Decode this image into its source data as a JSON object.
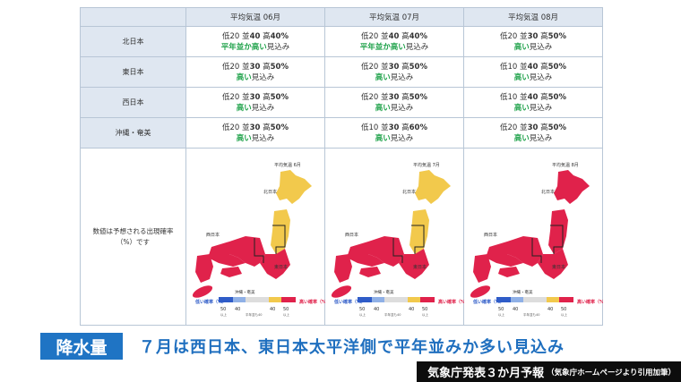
{
  "table": {
    "columns": [
      {
        "prefix": "平均気温",
        "month": "06月"
      },
      {
        "prefix": "平均気温",
        "month": "07月"
      },
      {
        "prefix": "平均気温",
        "month": "08月"
      }
    ],
    "rows": [
      {
        "region": "北日本",
        "cells": [
          {
            "l1": "低20",
            "l2": "並",
            "n": "40",
            "l3": "高",
            "h": "40%",
            "verdict": "平年並か高い",
            "tail": "見込み"
          },
          {
            "l1": "低20",
            "l2": "並",
            "n": "40",
            "l3": "高",
            "h": "40%",
            "verdict": "平年並か高い",
            "tail": "見込み"
          },
          {
            "l1": "低20",
            "l2": "並",
            "n": "30",
            "l3": "高",
            "h": "50%",
            "verdict": "高い",
            "tail": "見込み"
          }
        ]
      },
      {
        "region": "東日本",
        "cells": [
          {
            "l1": "低20",
            "l2": "並",
            "n": "30",
            "l3": "高",
            "h": "50%",
            "verdict": "高い",
            "tail": "見込み"
          },
          {
            "l1": "低20",
            "l2": "並",
            "n": "30",
            "l3": "高",
            "h": "50%",
            "verdict": "高い",
            "tail": "見込み"
          },
          {
            "l1": "低10",
            "l2": "並",
            "n": "40",
            "l3": "高",
            "h": "50%",
            "verdict": "高い",
            "tail": "見込み"
          }
        ]
      },
      {
        "region": "西日本",
        "cells": [
          {
            "l1": "低20",
            "l2": "並",
            "n": "30",
            "l3": "高",
            "h": "50%",
            "verdict": "高い",
            "tail": "見込み"
          },
          {
            "l1": "低20",
            "l2": "並",
            "n": "30",
            "l3": "高",
            "h": "50%",
            "verdict": "高い",
            "tail": "見込み"
          },
          {
            "l1": "低10",
            "l2": "並",
            "n": "40",
            "l3": "高",
            "h": "50%",
            "verdict": "高い",
            "tail": "見込み"
          }
        ]
      },
      {
        "region": "沖縄・奄美",
        "cells": [
          {
            "l1": "低20",
            "l2": "並",
            "n": "30",
            "l3": "高",
            "h": "50%",
            "verdict": "高い",
            "tail": "見込み"
          },
          {
            "l1": "低10",
            "l2": "並",
            "n": "30",
            "l3": "高",
            "h": "60%",
            "verdict": "高い",
            "tail": "見込み"
          },
          {
            "l1": "低20",
            "l2": "並",
            "n": "30",
            "l3": "高",
            "h": "50%",
            "verdict": "高い",
            "tail": "見込み"
          }
        ]
      }
    ],
    "map_caption": "数値は予想される出現確率（%）です",
    "maps": [
      {
        "title": "平均気温 6月",
        "north_color": "#f2c94c"
      },
      {
        "title": "平均気温 7月",
        "north_color": "#f2c94c"
      },
      {
        "title": "平均気温 8月",
        "north_color": "#e0224b"
      }
    ],
    "map_labels": {
      "north": "北日本",
      "west": "西日本",
      "east": "東日本",
      "okinawa": "沖縄・奄美"
    },
    "legend": {
      "low": "低い確率（%）",
      "high": "高い確率（%）",
      "v1": "50",
      "v2": "40",
      "v3": "40",
      "v4": "50",
      "sub1": "以上",
      "sub2": "平年並も40",
      "sub3": "以上"
    },
    "colors": {
      "high": "#e0224b",
      "normal": "#f2c94c",
      "low": "#2f5cc8",
      "header_bg": "#dfe7f1",
      "verdict": "#1fa24a"
    }
  },
  "banner": {
    "label": "降水量"
  },
  "headline": {
    "text": "７月は西日本、東日本太平洋側で平年並みか多い見込み"
  },
  "source": {
    "main": "気象庁発表３か月予報",
    "sub": "（気象庁ホームページより引用加筆）"
  }
}
